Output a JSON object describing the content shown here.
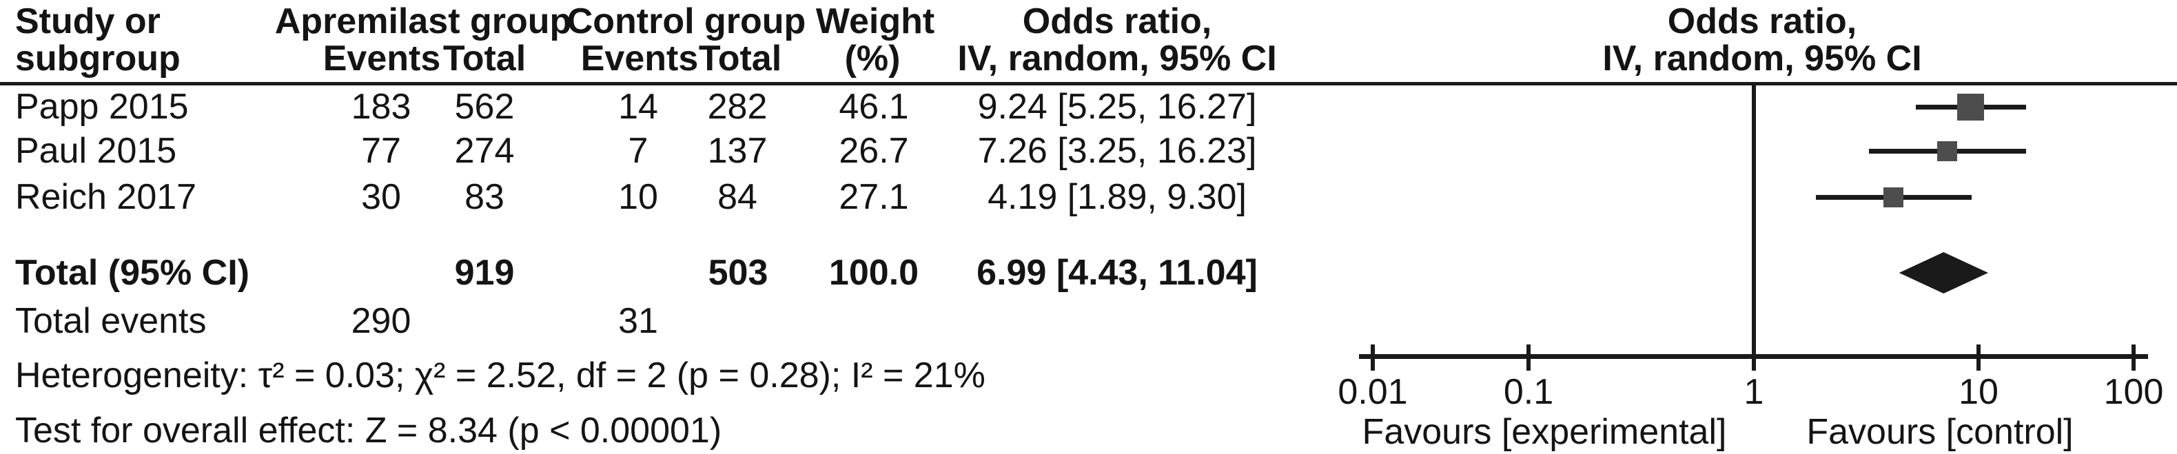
{
  "header": {
    "study_l1": "Study or",
    "study_l2": "subgroup",
    "group1": "Apremilast group",
    "group1_events": "Events",
    "group1_total": "Total",
    "group2": "Control group",
    "group2_events": "Events",
    "group2_total": "Total",
    "weight_l1": "Weight",
    "weight_l2": "(%)",
    "or_col_l1": "Odds ratio,",
    "or_col_l2": "IV, random, 95% CI",
    "plot_col_l1": "Odds ratio,",
    "plot_col_l2": "IV, random, 95% CI"
  },
  "total_row": {
    "label": "Total (95% CI)",
    "total_experimental": "919",
    "total_control": "503",
    "weight": "100.0",
    "or_text": "6.99 [4.43, 11.04]"
  },
  "total_events_row": {
    "label": "Total events",
    "experimental": "290",
    "control": "31"
  },
  "heterogeneity_text": "Heterogeneity: τ² = 0.03; χ² = 2.52, df = 2 (p = 0.28); I² = 21%",
  "overall_effect_text": "Test for overall effect: Z = 8.34 (p < 0.00001)",
  "axis": {
    "tick_labels": [
      "0.01",
      "0.1",
      "1",
      "10",
      "100"
    ],
    "favours_left": "Favours [experimental]",
    "favours_right": "Favours [control]"
  },
  "colors": {
    "square": "#4d4d4d",
    "diamond": "#1a1a1a",
    "line": "#1a1a1a"
  },
  "chart_data": {
    "type": "forest",
    "x_scale": "log",
    "x_ticks": [
      0.01,
      0.1,
      1,
      10,
      100
    ],
    "effect_label": "Odds ratio, IV, random, 95% CI",
    "studies": [
      {
        "name": "Papp 2015",
        "events_exp": "183",
        "total_exp": "562",
        "events_ctrl": "14",
        "total_ctrl": "282",
        "weight": "46.1",
        "or": 9.24,
        "ci_low": 5.25,
        "ci_high": 16.27,
        "or_text": "9.24 [5.25, 16.27]"
      },
      {
        "name": "Paul 2015",
        "events_exp": "77",
        "total_exp": "274",
        "events_ctrl": "7",
        "total_ctrl": "137",
        "weight": "26.7",
        "or": 7.26,
        "ci_low": 3.25,
        "ci_high": 16.23,
        "or_text": "7.26 [3.25, 16.23]"
      },
      {
        "name": "Reich 2017",
        "events_exp": "30",
        "total_exp": "83",
        "events_ctrl": "10",
        "total_ctrl": "84",
        "weight": "27.1",
        "or": 4.19,
        "ci_low": 1.89,
        "ci_high": 9.3,
        "or_text": "4.19 [1.89, 9.30]"
      }
    ],
    "total": {
      "name": "Total (95% CI)",
      "total_exp": 919,
      "total_ctrl": 503,
      "weight": 100.0,
      "or": 6.99,
      "ci_low": 4.43,
      "ci_high": 11.04
    },
    "heterogeneity": {
      "tau2": 0.03,
      "chi2": 2.52,
      "df": 2,
      "p": 0.28,
      "I2_pct": 21
    },
    "overall_effect": {
      "Z": 8.34,
      "p": "< 0.00001"
    }
  }
}
